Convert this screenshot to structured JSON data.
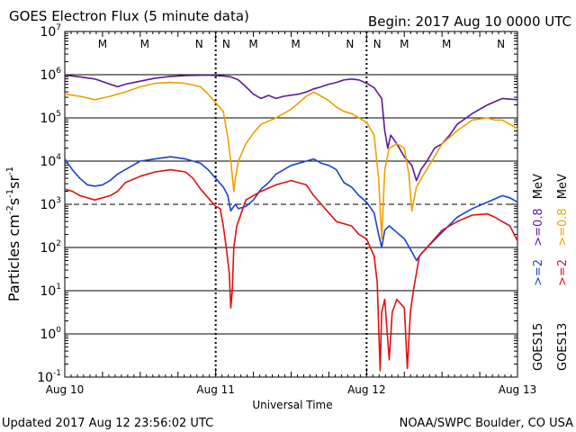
{
  "header": {
    "title": "GOES Electron Flux (5 minute data)",
    "begin": "Begin: 2017 Aug 10 0000 UTC"
  },
  "footer": {
    "updated": "Updated 2017 Aug 12 23:56:02 UTC",
    "credit": "NOAA/SWPC Boulder, CO USA"
  },
  "colors": {
    "g15_08": "#5b1a96",
    "g15_2": "#1f3fd0",
    "g13_08": "#f0a000",
    "g13_2": "#e01010",
    "marker_m": "#d01010",
    "marker_n": "#1f3fd0"
  },
  "chart_data": {
    "type": "line",
    "title": "GOES Electron Flux (5 minute data)",
    "xlabel": "Universal Time",
    "ylabel_parts": {
      "base": "Particles cm",
      "e1": "-2",
      "mid1": "s",
      "e2": "-1",
      "mid2": "sr",
      "e3": "-1"
    },
    "x_unit": "days since 2017 Aug 10 0000 UTC",
    "xlim": [
      0,
      3
    ],
    "x_ticks": [
      {
        "x": 0,
        "label": "Aug 10"
      },
      {
        "x": 1,
        "label": "Aug 11"
      },
      {
        "x": 2,
        "label": "Aug 12"
      },
      {
        "x": 3,
        "label": "Aug 13"
      }
    ],
    "y_scale": "log",
    "ylim_exp": [
      -1,
      7
    ],
    "y_ticks": [
      {
        "exp": -1,
        "base": "10",
        "sup": "-1"
      },
      {
        "exp": 0,
        "base": "10",
        "sup": "0"
      },
      {
        "exp": 1,
        "base": "10",
        "sup": "1"
      },
      {
        "exp": 2,
        "base": "10",
        "sup": "2"
      },
      {
        "exp": 3,
        "base": "10",
        "sup": "3"
      },
      {
        "exp": 4,
        "base": "10",
        "sup": "4"
      },
      {
        "exp": 5,
        "base": "10",
        "sup": "5"
      },
      {
        "exp": 6,
        "base": "10",
        "sup": "6"
      },
      {
        "exp": 7,
        "base": "10",
        "sup": "7"
      }
    ],
    "grid_solid_exp": [
      0,
      1,
      2,
      4,
      5,
      6
    ],
    "threshold_dashed_exp": 3,
    "noon_markers": [
      {
        "x": 0.25,
        "label": "M",
        "type": "M"
      },
      {
        "x": 0.53,
        "label": "M",
        "type": "M"
      },
      {
        "x": 0.89,
        "label": "N",
        "type": "N"
      },
      {
        "x": 1.07,
        "label": "N",
        "type": "N"
      },
      {
        "x": 1.25,
        "label": "M",
        "type": "M"
      },
      {
        "x": 1.53,
        "label": "M",
        "type": "M"
      },
      {
        "x": 1.89,
        "label": "N",
        "type": "N"
      },
      {
        "x": 2.07,
        "label": "N",
        "type": "N"
      },
      {
        "x": 2.25,
        "label": "M",
        "type": "M"
      },
      {
        "x": 2.53,
        "label": "M",
        "type": "M"
      },
      {
        "x": 2.89,
        "label": "N",
        "type": "N"
      },
      {
        "x": 3.07,
        "label": "N",
        "type": "N"
      }
    ],
    "legend": {
      "goes15": "GOES15",
      "goes13": "GOES13",
      "g15_2": ">=2",
      "g15_08": ">=0.8",
      "g13_2": ">=2",
      "g13_08": ">=0.8",
      "mev1": "MeV",
      "mev2": "MeV"
    },
    "series": [
      {
        "name": "GOES15 >=0.8 MeV",
        "color_key": "g15_08",
        "points": [
          [
            0,
            5.99
          ],
          [
            0.1,
            5.95
          ],
          [
            0.2,
            5.9
          ],
          [
            0.35,
            5.72
          ],
          [
            0.4,
            5.78
          ],
          [
            0.5,
            5.85
          ],
          [
            0.6,
            5.92
          ],
          [
            0.7,
            5.96
          ],
          [
            0.8,
            5.98
          ],
          [
            0.95,
            5.99
          ],
          [
            1.05,
            5.97
          ],
          [
            1.1,
            5.95
          ],
          [
            1.15,
            5.88
          ],
          [
            1.2,
            5.72
          ],
          [
            1.25,
            5.55
          ],
          [
            1.3,
            5.45
          ],
          [
            1.35,
            5.52
          ],
          [
            1.4,
            5.45
          ],
          [
            1.45,
            5.5
          ],
          [
            1.55,
            5.55
          ],
          [
            1.6,
            5.6
          ],
          [
            1.65,
            5.67
          ],
          [
            1.7,
            5.72
          ],
          [
            1.75,
            5.78
          ],
          [
            1.8,
            5.82
          ],
          [
            1.85,
            5.88
          ],
          [
            1.9,
            5.9
          ],
          [
            1.95,
            5.88
          ],
          [
            2.0,
            5.8
          ],
          [
            2.05,
            5.7
          ],
          [
            2.1,
            5.45
          ],
          [
            2.12,
            4.7
          ],
          [
            2.14,
            4.3
          ],
          [
            2.16,
            4.6
          ],
          [
            2.2,
            4.4
          ],
          [
            2.25,
            4.1
          ],
          [
            2.3,
            3.9
          ],
          [
            2.33,
            3.55
          ],
          [
            2.36,
            3.8
          ],
          [
            2.4,
            4.0
          ],
          [
            2.45,
            4.3
          ],
          [
            2.5,
            4.4
          ],
          [
            2.55,
            4.6
          ],
          [
            2.6,
            4.85
          ],
          [
            2.7,
            5.1
          ],
          [
            2.8,
            5.3
          ],
          [
            2.9,
            5.45
          ],
          [
            3.0,
            5.42
          ]
        ]
      },
      {
        "name": "GOES13 >=0.8 MeV",
        "color_key": "g13_08",
        "points": [
          [
            0,
            5.55
          ],
          [
            0.1,
            5.5
          ],
          [
            0.2,
            5.42
          ],
          [
            0.3,
            5.5
          ],
          [
            0.4,
            5.6
          ],
          [
            0.5,
            5.72
          ],
          [
            0.6,
            5.8
          ],
          [
            0.7,
            5.82
          ],
          [
            0.8,
            5.8
          ],
          [
            0.9,
            5.72
          ],
          [
            0.95,
            5.55
          ],
          [
            1.0,
            5.35
          ],
          [
            1.05,
            5.15
          ],
          [
            1.08,
            4.55
          ],
          [
            1.1,
            4.0
          ],
          [
            1.12,
            3.3
          ],
          [
            1.13,
            3.6
          ],
          [
            1.15,
            4.0
          ],
          [
            1.2,
            4.4
          ],
          [
            1.25,
            4.65
          ],
          [
            1.3,
            4.85
          ],
          [
            1.4,
            5.0
          ],
          [
            1.5,
            5.2
          ],
          [
            1.6,
            5.5
          ],
          [
            1.65,
            5.6
          ],
          [
            1.7,
            5.5
          ],
          [
            1.75,
            5.4
          ],
          [
            1.8,
            5.25
          ],
          [
            1.85,
            5.15
          ],
          [
            1.9,
            5.1
          ],
          [
            1.95,
            5.0
          ],
          [
            2.0,
            4.9
          ],
          [
            2.05,
            4.6
          ],
          [
            2.08,
            3.6
          ],
          [
            2.1,
            2.2
          ],
          [
            2.12,
            3.8
          ],
          [
            2.15,
            4.3
          ],
          [
            2.2,
            4.4
          ],
          [
            2.25,
            4.3
          ],
          [
            2.28,
            3.7
          ],
          [
            2.3,
            2.85
          ],
          [
            2.33,
            3.4
          ],
          [
            2.38,
            3.7
          ],
          [
            2.45,
            4.1
          ],
          [
            2.5,
            4.4
          ],
          [
            2.6,
            4.7
          ],
          [
            2.7,
            4.95
          ],
          [
            2.8,
            5.0
          ],
          [
            2.85,
            4.95
          ],
          [
            2.9,
            4.95
          ],
          [
            2.95,
            4.85
          ],
          [
            3.0,
            4.75
          ]
        ]
      },
      {
        "name": "GOES15 >=2 MeV",
        "color_key": "g15_2",
        "points": [
          [
            0,
            4.05
          ],
          [
            0.05,
            3.8
          ],
          [
            0.1,
            3.6
          ],
          [
            0.15,
            3.45
          ],
          [
            0.2,
            3.42
          ],
          [
            0.25,
            3.45
          ],
          [
            0.3,
            3.55
          ],
          [
            0.35,
            3.7
          ],
          [
            0.4,
            3.8
          ],
          [
            0.45,
            3.9
          ],
          [
            0.5,
            4.0
          ],
          [
            0.6,
            4.05
          ],
          [
            0.7,
            4.1
          ],
          [
            0.8,
            4.05
          ],
          [
            0.9,
            3.95
          ],
          [
            0.95,
            3.8
          ],
          [
            1.0,
            3.6
          ],
          [
            1.05,
            3.4
          ],
          [
            1.08,
            3.2
          ],
          [
            1.1,
            2.85
          ],
          [
            1.13,
            3.0
          ],
          [
            1.15,
            2.9
          ],
          [
            1.2,
            2.95
          ],
          [
            1.25,
            3.1
          ],
          [
            1.3,
            3.35
          ],
          [
            1.35,
            3.5
          ],
          [
            1.4,
            3.7
          ],
          [
            1.5,
            3.9
          ],
          [
            1.6,
            4.0
          ],
          [
            1.65,
            4.05
          ],
          [
            1.7,
            3.95
          ],
          [
            1.75,
            3.9
          ],
          [
            1.8,
            3.8
          ],
          [
            1.85,
            3.5
          ],
          [
            1.9,
            3.4
          ],
          [
            1.95,
            3.2
          ],
          [
            2.0,
            3.05
          ],
          [
            2.05,
            2.8
          ],
          [
            2.08,
            2.3
          ],
          [
            2.1,
            2.0
          ],
          [
            2.12,
            2.4
          ],
          [
            2.15,
            2.5
          ],
          [
            2.2,
            2.35
          ],
          [
            2.25,
            2.2
          ],
          [
            2.3,
            1.9
          ],
          [
            2.33,
            1.7
          ],
          [
            2.36,
            1.85
          ],
          [
            2.4,
            2.0
          ],
          [
            2.5,
            2.35
          ],
          [
            2.6,
            2.7
          ],
          [
            2.7,
            2.9
          ],
          [
            2.8,
            3.05
          ],
          [
            2.9,
            3.2
          ],
          [
            2.95,
            3.15
          ],
          [
            3.0,
            3.05
          ]
        ]
      },
      {
        "name": "GOES13 >=2 MeV",
        "color_key": "g13_2",
        "points": [
          [
            0,
            3.35
          ],
          [
            0.05,
            3.3
          ],
          [
            0.1,
            3.2
          ],
          [
            0.2,
            3.1
          ],
          [
            0.3,
            3.2
          ],
          [
            0.35,
            3.3
          ],
          [
            0.4,
            3.5
          ],
          [
            0.5,
            3.65
          ],
          [
            0.6,
            3.75
          ],
          [
            0.7,
            3.8
          ],
          [
            0.8,
            3.75
          ],
          [
            0.85,
            3.6
          ],
          [
            0.9,
            3.35
          ],
          [
            0.95,
            3.15
          ],
          [
            1.0,
            2.95
          ],
          [
            1.03,
            2.9
          ],
          [
            1.05,
            2.5
          ],
          [
            1.07,
            2.0
          ],
          [
            1.09,
            1.4
          ],
          [
            1.1,
            0.6
          ],
          [
            1.11,
            1.0
          ],
          [
            1.12,
            2.0
          ],
          [
            1.14,
            2.5
          ],
          [
            1.18,
            2.9
          ],
          [
            1.2,
            3.1
          ],
          [
            1.3,
            3.3
          ],
          [
            1.4,
            3.45
          ],
          [
            1.5,
            3.55
          ],
          [
            1.55,
            3.5
          ],
          [
            1.6,
            3.45
          ],
          [
            1.65,
            3.2
          ],
          [
            1.7,
            3.0
          ],
          [
            1.75,
            2.8
          ],
          [
            1.8,
            2.6
          ],
          [
            1.85,
            2.55
          ],
          [
            1.9,
            2.5
          ],
          [
            1.95,
            2.3
          ],
          [
            2.0,
            2.2
          ],
          [
            2.05,
            1.8
          ],
          [
            2.07,
            1.2
          ],
          [
            2.09,
            -0.85
          ],
          [
            2.1,
            0.5
          ],
          [
            2.12,
            0.8
          ],
          [
            2.15,
            -0.6
          ],
          [
            2.17,
            0.5
          ],
          [
            2.2,
            0.8
          ],
          [
            2.25,
            0.6
          ],
          [
            2.27,
            -0.8
          ],
          [
            2.29,
            0.5
          ],
          [
            2.31,
            1.0
          ],
          [
            2.35,
            1.8
          ],
          [
            2.4,
            2.0
          ],
          [
            2.5,
            2.4
          ],
          [
            2.6,
            2.6
          ],
          [
            2.7,
            2.75
          ],
          [
            2.8,
            2.78
          ],
          [
            2.85,
            2.7
          ],
          [
            2.9,
            2.6
          ],
          [
            2.95,
            2.5
          ],
          [
            3.0,
            2.15
          ]
        ]
      }
    ]
  }
}
